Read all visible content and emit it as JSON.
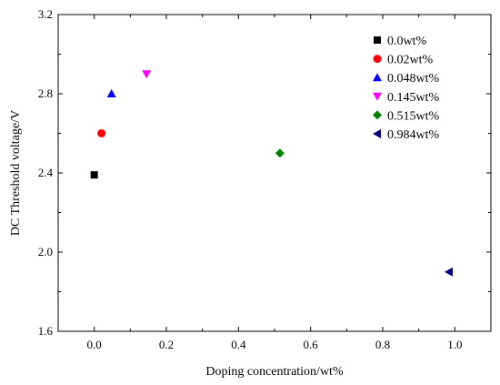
{
  "chart_data": {
    "type": "scatter",
    "title": "",
    "xlabel": "Doping concentration/wt%",
    "ylabel": "DC Threshold voltage/V",
    "xlim": [
      -0.1,
      1.1
    ],
    "ylim": [
      1.6,
      3.2
    ],
    "xticks": [
      "0.0",
      "0.2",
      "0.4",
      "0.6",
      "0.8",
      "1.0"
    ],
    "yticks": [
      "1.6",
      "2.0",
      "2.4",
      "2.8",
      "3.2"
    ],
    "grid": false,
    "legend_position": "top-right",
    "series": [
      {
        "name": "0.0wt%",
        "x": 0.0,
        "y": 2.39,
        "marker": "square",
        "color": "#000000"
      },
      {
        "name": "0.02wt%",
        "x": 0.02,
        "y": 2.6,
        "marker": "circle",
        "color": "#ff0000"
      },
      {
        "name": "0.048wt%",
        "x": 0.048,
        "y": 2.8,
        "marker": "triangle-up",
        "color": "#0000ff"
      },
      {
        "name": "0.145wt%",
        "x": 0.145,
        "y": 2.9,
        "marker": "triangle-down",
        "color": "#ff00ff"
      },
      {
        "name": "0.515wt%",
        "x": 0.515,
        "y": 2.5,
        "marker": "diamond",
        "color": "#008000"
      },
      {
        "name": "0.984wt%",
        "x": 0.984,
        "y": 1.9,
        "marker": "triangle-left",
        "color": "#000080"
      }
    ]
  }
}
